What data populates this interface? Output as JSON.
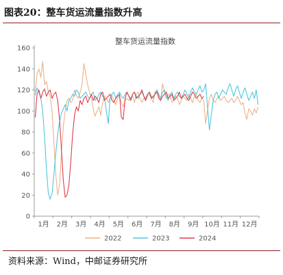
{
  "header": {
    "title": "图表20：整车货运流量指数升高"
  },
  "footer": {
    "source": "资料来源：Wind，中邮证券研究所"
  },
  "colors": {
    "s2022": "#e8b48a",
    "s2023": "#4ec6df",
    "s2024": "#e03a46",
    "rule": "#8b1e1e"
  },
  "chart_data": {
    "type": "line",
    "title": "整车货运流量指数",
    "xlabel": "",
    "ylabel": "",
    "xlim": [
      0,
      12
    ],
    "ylim": [
      0,
      160
    ],
    "yticks": [
      0,
      20,
      40,
      60,
      80,
      100,
      120,
      140,
      160
    ],
    "xtick_positions": [
      0,
      1,
      2,
      3,
      4,
      5,
      6,
      7,
      8,
      9,
      10,
      11
    ],
    "xtick_labels": [
      "1月",
      "2月",
      "3月",
      "4月",
      "5月",
      "6月",
      "7月",
      "8月",
      "9月",
      "10月",
      "11月",
      "12月"
    ],
    "legend_position": "bottom",
    "grid": false,
    "series": [
      {
        "name": "2022",
        "color": "#e8b48a",
        "x": [
          0.05,
          0.15,
          0.25,
          0.35,
          0.45,
          0.55,
          0.65,
          0.75,
          0.85,
          0.95,
          1.05,
          1.15,
          1.25,
          1.35,
          1.45,
          1.55,
          1.65,
          1.75,
          1.85,
          1.95,
          2.05,
          2.15,
          2.25,
          2.35,
          2.45,
          2.55,
          2.65,
          2.75,
          2.85,
          2.95,
          3.05,
          3.15,
          3.25,
          3.35,
          3.45,
          3.55,
          3.65,
          3.75,
          3.85,
          3.95,
          4.05,
          4.15,
          4.25,
          4.35,
          4.45,
          4.55,
          4.65,
          4.75,
          4.85,
          4.95,
          5.05,
          5.15,
          5.25,
          5.35,
          5.45,
          5.55,
          5.65,
          5.75,
          5.85,
          5.95,
          6.05,
          6.15,
          6.25,
          6.35,
          6.45,
          6.55,
          6.65,
          6.75,
          6.85,
          6.95,
          7.05,
          7.15,
          7.25,
          7.35,
          7.45,
          7.55,
          7.65,
          7.75,
          7.85,
          7.95,
          8.05,
          8.15,
          8.25,
          8.35,
          8.45,
          8.55,
          8.65,
          8.75,
          8.85,
          8.95,
          9.05,
          9.15,
          9.25,
          9.35,
          9.45,
          9.55,
          9.65,
          9.75,
          9.85,
          9.95,
          10.05,
          10.15,
          10.25,
          10.35,
          10.45,
          10.55,
          10.65,
          10.75,
          10.85,
          10.95,
          11.05,
          11.15,
          11.25,
          11.35,
          11.45,
          11.55,
          11.65,
          11.75,
          11.85,
          11.95
        ],
        "y": [
          118,
          135,
          140,
          132,
          147,
          125,
          128,
          118,
          114,
          100,
          70,
          40,
          20,
          30,
          60,
          85,
          100,
          110,
          112,
          108,
          110,
          120,
          115,
          112,
          118,
          125,
          145,
          135,
          125,
          118,
          112,
          102,
          95,
          100,
          104,
          96,
          108,
          114,
          112,
          108,
          112,
          115,
          110,
          106,
          112,
          114,
          108,
          104,
          110,
          112,
          110,
          112,
          114,
          108,
          116,
          118,
          112,
          108,
          112,
          110,
          114,
          116,
          112,
          108,
          118,
          120,
          114,
          110,
          126,
          118,
          112,
          116,
          114,
          108,
          110,
          114,
          112,
          106,
          110,
          114,
          112,
          110,
          116,
          112,
          108,
          114,
          116,
          110,
          108,
          112,
          110,
          88,
          100,
          112,
          116,
          110,
          108,
          112,
          114,
          110,
          112,
          114,
          110,
          108,
          110,
          112,
          108,
          110,
          114,
          110,
          106,
          108,
          98,
          92,
          102,
          100,
          96,
          102,
          98,
          104
        ]
      },
      {
        "name": "2023",
        "color": "#4ec6df",
        "x": [
          0.05,
          0.15,
          0.25,
          0.35,
          0.45,
          0.55,
          0.65,
          0.75,
          0.85,
          0.95,
          1.05,
          1.15,
          1.25,
          1.35,
          1.45,
          1.55,
          1.65,
          1.75,
          1.85,
          1.95,
          2.05,
          2.15,
          2.25,
          2.35,
          2.45,
          2.55,
          2.65,
          2.75,
          2.85,
          2.95,
          3.05,
          3.15,
          3.25,
          3.35,
          3.45,
          3.55,
          3.65,
          3.75,
          3.85,
          3.95,
          4.05,
          4.15,
          4.25,
          4.35,
          4.45,
          4.55,
          4.65,
          4.75,
          4.85,
          4.95,
          5.05,
          5.15,
          5.25,
          5.35,
          5.45,
          5.55,
          5.65,
          5.75,
          5.85,
          5.95,
          6.05,
          6.15,
          6.25,
          6.35,
          6.45,
          6.55,
          6.65,
          6.75,
          6.85,
          6.95,
          7.05,
          7.15,
          7.25,
          7.35,
          7.45,
          7.55,
          7.65,
          7.75,
          7.85,
          7.95,
          8.05,
          8.15,
          8.25,
          8.35,
          8.45,
          8.55,
          8.65,
          8.75,
          8.85,
          8.95,
          9.05,
          9.15,
          9.25,
          9.35,
          9.45,
          9.55,
          9.65,
          9.75,
          9.85,
          9.95,
          10.05,
          10.15,
          10.25,
          10.35,
          10.45,
          10.55,
          10.65,
          10.75,
          10.85,
          10.95,
          11.05,
          11.15,
          11.25,
          11.35,
          11.45,
          11.55,
          11.65,
          11.75,
          11.85,
          11.95
        ],
        "y": [
          115,
          122,
          118,
          112,
          100,
          75,
          45,
          22,
          16,
          22,
          40,
          60,
          78,
          90,
          98,
          102,
          106,
          100,
          110,
          112,
          116,
          114,
          120,
          118,
          112,
          114,
          116,
          118,
          114,
          112,
          116,
          118,
          110,
          112,
          116,
          118,
          114,
          112,
          100,
          88,
          112,
          116,
          118,
          112,
          116,
          118,
          114,
          112,
          116,
          118,
          114,
          112,
          116,
          118,
          114,
          112,
          116,
          118,
          114,
          112,
          116,
          118,
          114,
          112,
          116,
          120,
          116,
          112,
          118,
          120,
          114,
          110,
          116,
          118,
          112,
          116,
          118,
          114,
          112,
          116,
          120,
          116,
          112,
          118,
          122,
          118,
          116,
          120,
          124,
          118,
          120,
          126,
          104,
          82,
          96,
          110,
          116,
          118,
          112,
          116,
          120,
          118,
          116,
          122,
          126,
          120,
          114,
          120,
          124,
          118,
          112,
          118,
          122,
          116,
          110,
          114,
          118,
          112,
          120,
          106
        ]
      },
      {
        "name": "2024",
        "color": "#e03a46",
        "x": [
          0.05,
          0.15,
          0.25,
          0.35,
          0.45,
          0.55,
          0.65,
          0.75,
          0.85,
          0.95,
          1.05,
          1.15,
          1.25,
          1.35,
          1.45,
          1.55,
          1.65,
          1.75,
          1.85,
          1.95,
          2.05,
          2.15,
          2.25,
          2.35,
          2.45,
          2.55,
          2.65,
          2.75,
          2.85,
          2.95,
          3.05,
          3.15,
          3.25,
          3.35,
          3.45,
          3.55,
          3.65,
          3.75,
          3.85,
          3.95,
          4.05,
          4.15,
          4.25,
          4.35,
          4.45,
          4.55,
          4.65,
          4.75,
          4.85,
          4.95,
          5.05,
          5.15,
          5.25,
          5.35,
          5.45,
          5.55,
          5.65,
          5.75,
          5.85,
          5.95,
          6.05,
          6.15,
          6.25,
          6.35,
          6.45,
          6.55,
          6.65,
          6.75,
          6.85,
          6.95,
          7.05,
          7.15,
          7.25,
          7.35,
          7.45,
          7.55,
          7.65,
          7.75,
          7.85,
          7.95,
          8.05,
          8.15,
          8.25,
          8.35,
          8.45,
          8.55,
          8.65,
          8.75,
          8.85,
          8.95,
          9.05
        ],
        "y": [
          94,
          116,
          120,
          112,
          118,
          121,
          114,
          118,
          120,
          112,
          116,
          118,
          110,
          92,
          64,
          34,
          18,
          20,
          30,
          52,
          78,
          96,
          104,
          100,
          110,
          106,
          112,
          114,
          108,
          112,
          116,
          110,
          114,
          112,
          108,
          116,
          118,
          110,
          112,
          114,
          116,
          110,
          108,
          112,
          114,
          116,
          94,
          92,
          112,
          118,
          114,
          110,
          116,
          118,
          112,
          114,
          116,
          120,
          114,
          110,
          116,
          118,
          112,
          114,
          116,
          118,
          112,
          110,
          114,
          116,
          118,
          112,
          114,
          116,
          110,
          112,
          114,
          118,
          112,
          114,
          116,
          112,
          110,
          114,
          118,
          116,
          112,
          114,
          116,
          112,
          114
        ]
      }
    ]
  }
}
